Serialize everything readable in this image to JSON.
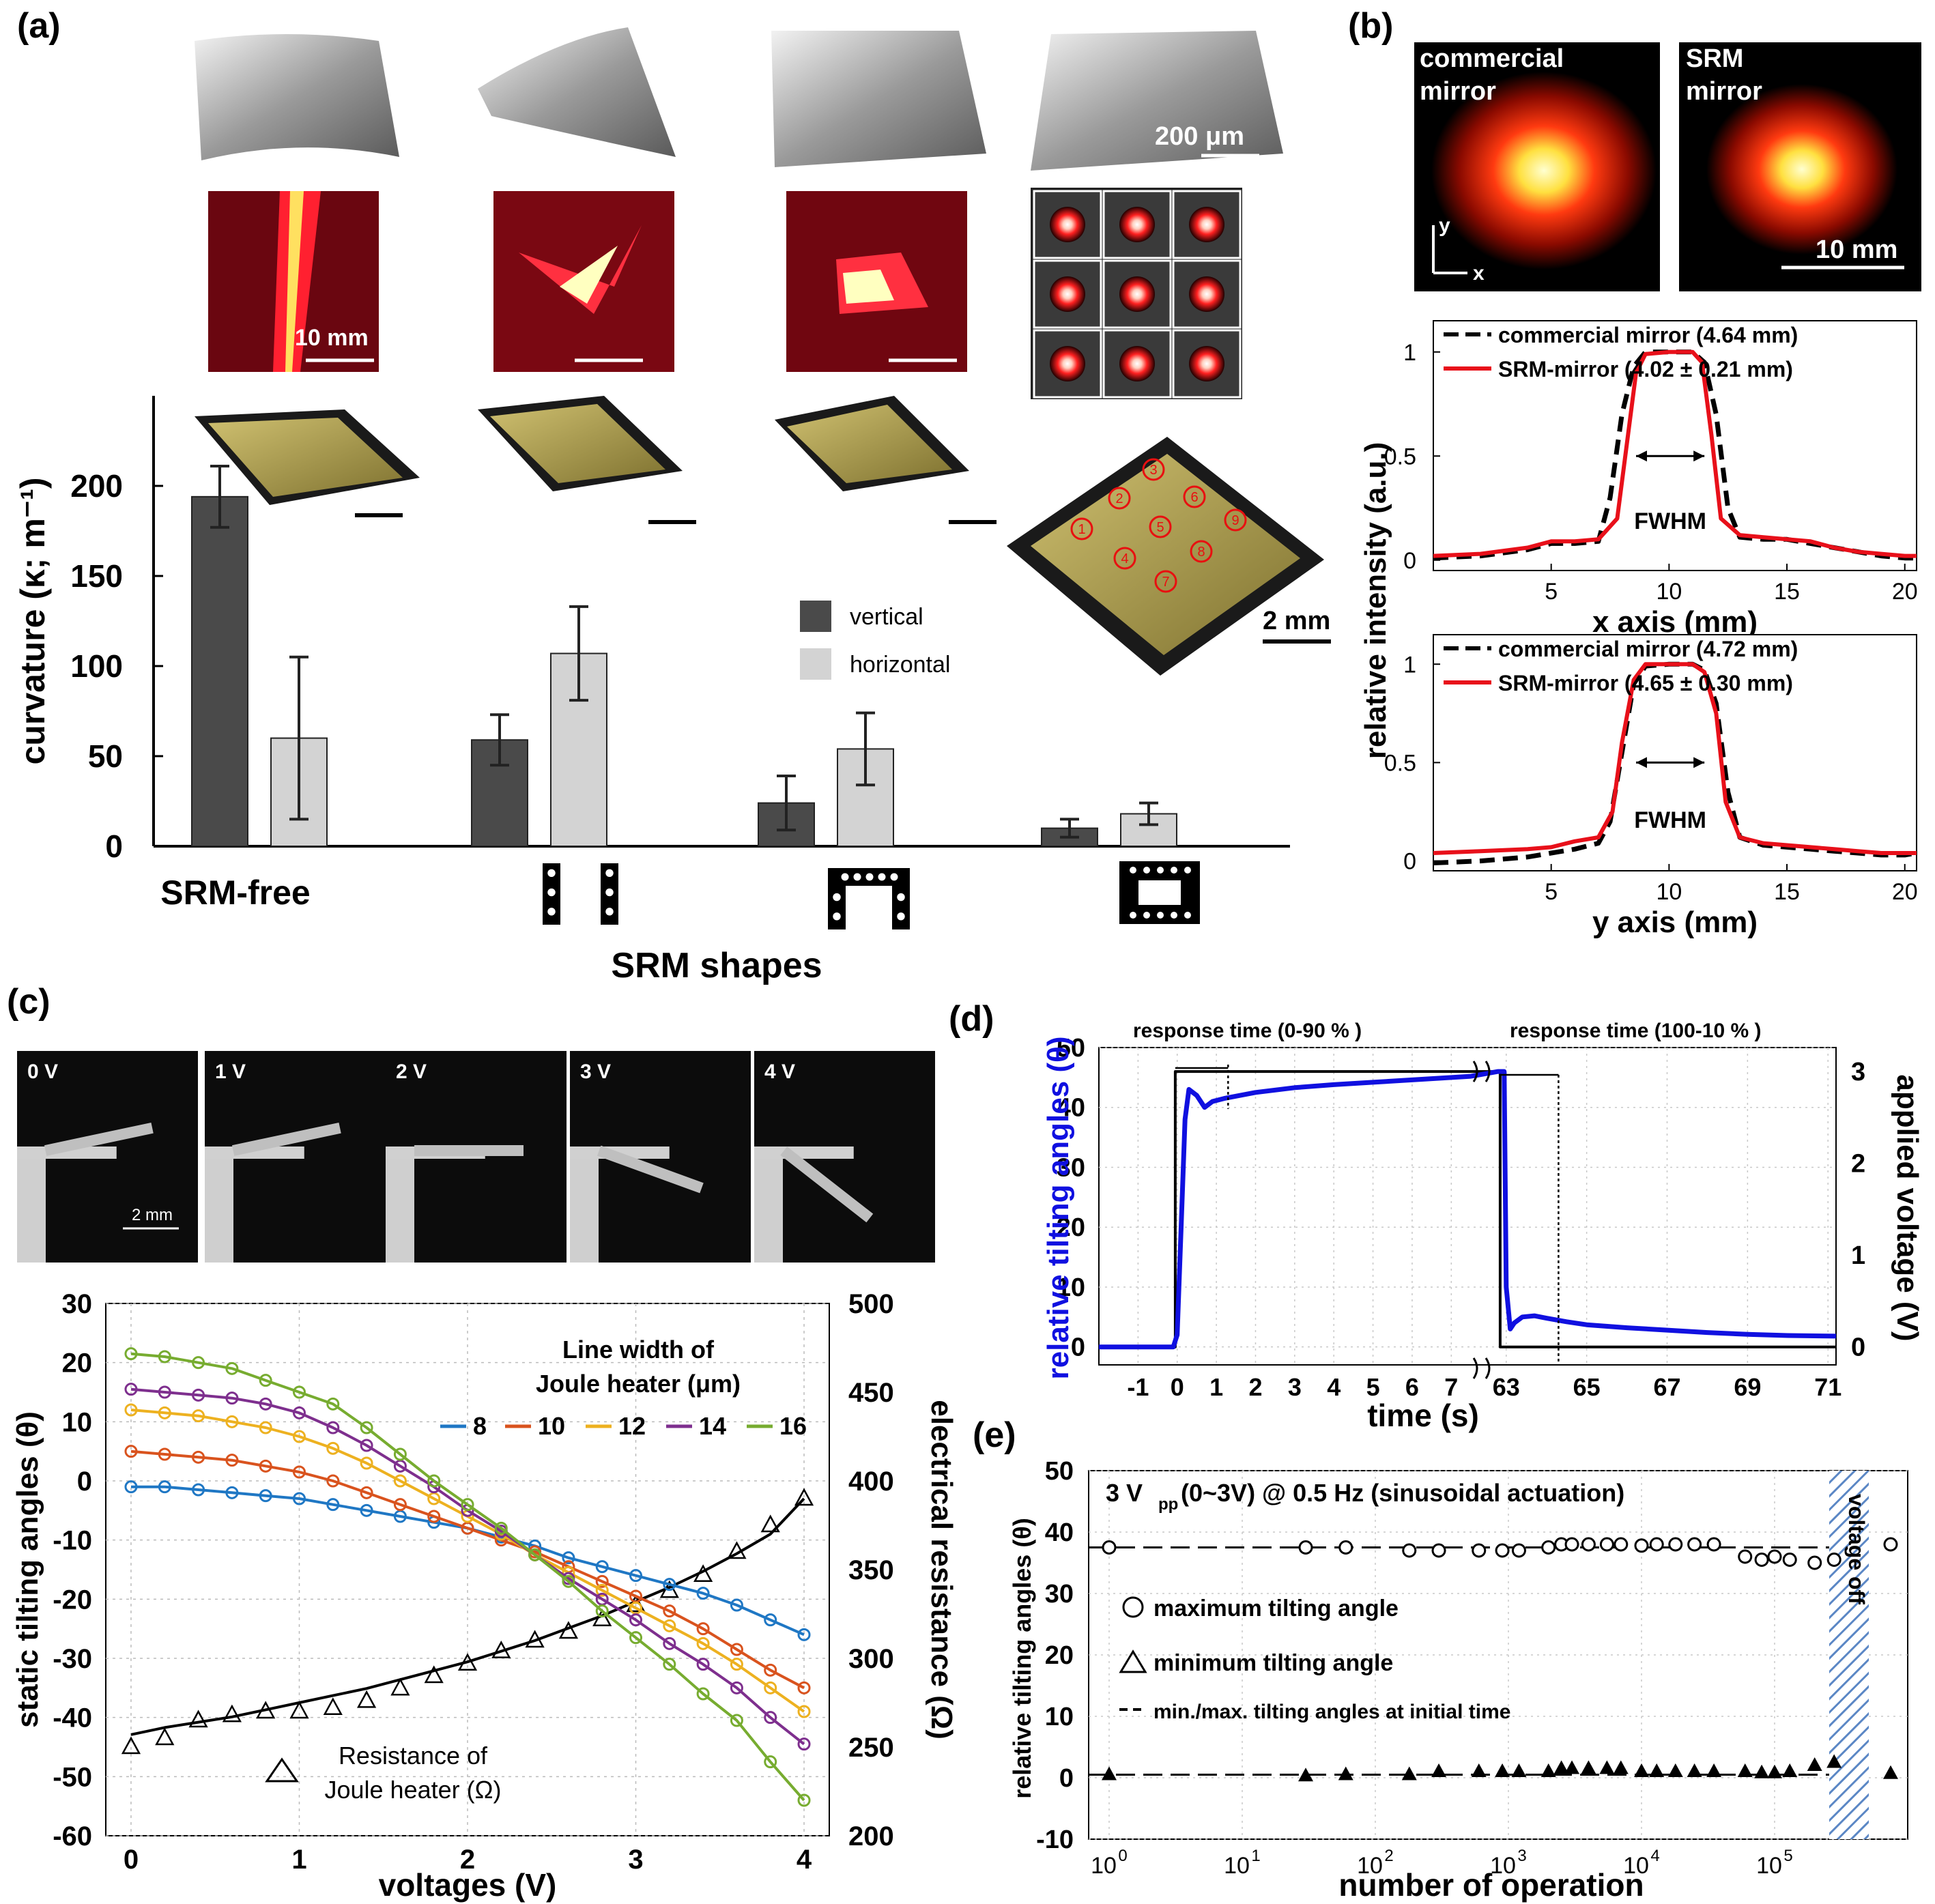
{
  "panel_labels": {
    "a": "(a)",
    "b": "(b)",
    "c": "(c)",
    "d": "(d)",
    "e": "(e)"
  },
  "panel_a": {
    "scale_200um": "200 μm",
    "scale_10mm": "10 mm",
    "scale_2mm": "2 mm",
    "spot_numbers": [
      "1",
      "2",
      "3",
      "4",
      "5",
      "6",
      "7",
      "8",
      "9"
    ]
  },
  "panel_b": {
    "photo_left_lines": [
      "commercial",
      "mirror"
    ],
    "photo_right_lines": [
      "SRM",
      "mirror"
    ],
    "axis_x": "x",
    "axis_y": "y",
    "scale": "10 mm",
    "shared_ylabel": "relative intensity (a.u.)",
    "fwhm": "FWHM"
  },
  "panel_c": {
    "photo_labels": [
      "0 V",
      "1 V",
      "2 V",
      "3 V",
      "4 V"
    ],
    "photo_scale": "2 mm",
    "legend_title_lines": [
      "Line width of",
      "Joule heater (μm)"
    ],
    "resistance_legend_lines": [
      "Resistance of",
      "Joule heater (Ω)"
    ]
  },
  "panel_d": {
    "annotation_left": "response time (0-90 % )",
    "annotation_right": "response time (100-10 % )"
  },
  "panel_e": {
    "title": "3 V",
    "title_sub": "pp",
    "title_rest": " (0~3V) @ 0.5 Hz (sinusoidal actuation)",
    "legend_max": "maximum tilting angle",
    "legend_min": "minimum tilting angle",
    "legend_init": "min./max. tilting angles at initial time",
    "voltage_off": "voltage off"
  },
  "chart_data": [
    {
      "id": "a",
      "type": "bar",
      "categories": [
        "SRM-free",
        "",
        "",
        ""
      ],
      "xlabel": "SRM shapes",
      "ylabel": "curvature (κ; m⁻¹)",
      "ylim": [
        0,
        250
      ],
      "yticks": [
        0,
        50,
        100,
        150,
        200
      ],
      "series": [
        {
          "name": "vertical",
          "color": "#4a4a4a",
          "values": [
            194,
            59,
            24,
            10
          ],
          "errors": [
            17,
            14,
            15,
            5
          ]
        },
        {
          "name": "horizontal",
          "color": "#d3d3d3",
          "values": [
            60,
            107,
            54,
            18
          ],
          "errors": [
            45,
            26,
            20,
            6
          ]
        }
      ]
    },
    {
      "id": "b1",
      "type": "line",
      "xlabel": "x axis (mm)",
      "xlim": [
        0,
        20.5
      ],
      "ylim": [
        -0.05,
        1.15
      ],
      "xticks": [
        5,
        10,
        15,
        20
      ],
      "yticks": [
        0,
        0.5,
        1
      ],
      "series": [
        {
          "name": "commercial mirror (4.64 mm)",
          "color": "#000000",
          "dash": true,
          "x": [
            0,
            2,
            4,
            5,
            6,
            7,
            7.5,
            8,
            8.5,
            9,
            10,
            11,
            11.5,
            12,
            12.5,
            13,
            14,
            15,
            16,
            17,
            18,
            19,
            20,
            20.5
          ],
          "y": [
            0.01,
            0.02,
            0.05,
            0.08,
            0.08,
            0.09,
            0.3,
            0.7,
            0.93,
            1,
            1,
            1,
            0.95,
            0.7,
            0.25,
            0.11,
            0.1,
            0.1,
            0.08,
            0.06,
            0.04,
            0.02,
            0.01,
            0.01
          ]
        },
        {
          "name": "SRM-mirror (4.02 ± 0.21 mm)",
          "color": "#e8101a",
          "dash": false,
          "x": [
            0,
            2,
            4,
            5,
            6,
            7,
            7.8,
            8.2,
            8.6,
            9,
            10,
            11,
            11.4,
            11.8,
            12.2,
            13,
            14,
            15,
            16,
            17,
            18,
            19,
            20,
            20.5
          ],
          "y": [
            0.02,
            0.03,
            0.06,
            0.09,
            0.09,
            0.1,
            0.2,
            0.55,
            0.9,
            0.99,
            1,
            1,
            0.95,
            0.6,
            0.2,
            0.12,
            0.11,
            0.1,
            0.09,
            0.06,
            0.04,
            0.03,
            0.02,
            0.02
          ]
        }
      ]
    },
    {
      "id": "b2",
      "type": "line",
      "xlabel": "y axis (mm)",
      "xlim": [
        0,
        20.5
      ],
      "ylim": [
        -0.05,
        1.15
      ],
      "xticks": [
        5,
        10,
        15,
        20
      ],
      "yticks": [
        0,
        0.5,
        1
      ],
      "series": [
        {
          "name": "commercial mirror (4.72 mm)",
          "color": "#000000",
          "dash": true,
          "x": [
            0,
            2,
            4,
            5,
            6,
            7,
            7.5,
            8,
            8.5,
            9,
            10,
            11,
            11.5,
            12,
            12.5,
            13,
            14,
            15,
            16,
            17,
            18,
            19,
            20,
            20.5
          ],
          "y": [
            -0.01,
            0,
            0.02,
            0.04,
            0.06,
            0.09,
            0.2,
            0.55,
            0.9,
            0.99,
            1,
            1,
            0.97,
            0.8,
            0.35,
            0.12,
            0.08,
            0.07,
            0.06,
            0.05,
            0.04,
            0.03,
            0.03,
            0.04
          ]
        },
        {
          "name": "SRM-mirror (4.65 ± 0.30 mm)",
          "color": "#e8101a",
          "dash": false,
          "x": [
            0,
            2,
            4,
            5,
            6,
            7,
            7.6,
            8,
            8.5,
            9,
            10,
            11,
            11.5,
            12,
            12.4,
            13,
            14,
            15,
            16,
            17,
            18,
            19,
            20,
            20.5
          ],
          "y": [
            0.04,
            0.05,
            0.06,
            0.07,
            0.1,
            0.12,
            0.25,
            0.6,
            0.92,
            1,
            1,
            1,
            0.96,
            0.75,
            0.3,
            0.12,
            0.09,
            0.08,
            0.07,
            0.06,
            0.05,
            0.04,
            0.04,
            0.04
          ]
        }
      ]
    },
    {
      "id": "c",
      "type": "line",
      "xlabel": "voltages (V)",
      "ylabel": "static tilting angles (θ)",
      "ylabel_right": "electrical resistance (Ω)",
      "xlim": [
        -0.15,
        4.15
      ],
      "ylim": [
        -60,
        30
      ],
      "ylim_right": [
        200,
        500
      ],
      "xticks": [
        0,
        1,
        2,
        3,
        4
      ],
      "yticks": [
        -60,
        -50,
        -40,
        -30,
        -20,
        -10,
        0,
        10,
        20,
        30
      ],
      "yticks_right": [
        200,
        250,
        300,
        350,
        400,
        450,
        500
      ],
      "x": [
        0,
        0.2,
        0.4,
        0.6,
        0.8,
        1.0,
        1.2,
        1.4,
        1.6,
        1.8,
        2.0,
        2.2,
        2.4,
        2.6,
        2.8,
        3.0,
        3.2,
        3.4,
        3.6,
        3.8,
        4.0
      ],
      "series": [
        {
          "name": "8",
          "color": "#1f77c4",
          "values": [
            -1,
            -1,
            -1.5,
            -2,
            -2.5,
            -3,
            -4,
            -5,
            -6,
            -7,
            -8,
            -9.5,
            -11,
            -13,
            -14.5,
            -16,
            -17.5,
            -19,
            -21,
            -23.5,
            -26
          ]
        },
        {
          "name": "10",
          "color": "#d9531e",
          "values": [
            5,
            4.5,
            4,
            3.5,
            2.5,
            1.5,
            0,
            -2,
            -4,
            -6,
            -8,
            -10,
            -12,
            -14.5,
            -17,
            -19.5,
            -22,
            -25,
            -28.5,
            -32,
            -35
          ]
        },
        {
          "name": "12",
          "color": "#edb120",
          "values": [
            12,
            11.5,
            11,
            10,
            9,
            7.5,
            5.5,
            3,
            0,
            -3,
            -6,
            -9,
            -12.5,
            -15.5,
            -18.5,
            -21.5,
            -24.5,
            -27.5,
            -31,
            -35,
            -39
          ]
        },
        {
          "name": "14",
          "color": "#7e2f8e",
          "values": [
            15.5,
            15,
            14.5,
            14,
            13,
            11.5,
            9,
            6,
            2.5,
            -1,
            -5,
            -8.5,
            -12.5,
            -16.5,
            -20,
            -23.5,
            -27.5,
            -31,
            -35,
            -40,
            -44.5
          ]
        },
        {
          "name": "16",
          "color": "#77ac30",
          "values": [
            21.5,
            21,
            20,
            19,
            17,
            15,
            13,
            9,
            4.5,
            0,
            -4,
            -8,
            -12.5,
            -17,
            -22,
            -26.5,
            -31,
            -36,
            -40.5,
            -47.5,
            -54
          ]
        }
      ],
      "resistance": {
        "name": "Resistance of Joule heater (Ω)",
        "marker_values": [
          250,
          255,
          265,
          268,
          270,
          270,
          272,
          276,
          283,
          290,
          297,
          304,
          310,
          315,
          322,
          330,
          338,
          347,
          360,
          375,
          390
        ],
        "fit_values": [
          257,
          261,
          264,
          267,
          271,
          275,
          279,
          283,
          288,
          293,
          298,
          304,
          310,
          317,
          324,
          332,
          340,
          349,
          359,
          370,
          390
        ]
      }
    },
    {
      "id": "d",
      "type": "line",
      "xlabel": "time (s)",
      "ylabel": "relative tilting angles (θ)",
      "ylabel_right": "applied voltage (V)",
      "ylim": [
        -3,
        50
      ],
      "yticks": [
        0,
        10,
        20,
        30,
        40,
        50
      ],
      "yticks_right": [
        0,
        1,
        2,
        3
      ],
      "xticks_left": [
        -1,
        0,
        1,
        2,
        3,
        4,
        5,
        6,
        7
      ],
      "xticks_right": [
        63,
        65,
        67,
        69,
        71
      ],
      "segments": {
        "left": [
          -2,
          7.5
        ],
        "right": [
          62.8,
          71.2
        ]
      },
      "angle": {
        "name": "relative tilting angles",
        "color": "#1010e0",
        "x": [
          -2,
          -0.1,
          0,
          0.1,
          0.2,
          0.3,
          0.5,
          0.7,
          0.9,
          1.2,
          1.6,
          2,
          3,
          4,
          5,
          6,
          7,
          7.5,
          62.8,
          62.95,
          63,
          63.1,
          63.2,
          63.4,
          63.7,
          64,
          64.5,
          65,
          66,
          67,
          68,
          69,
          70,
          71.2
        ],
        "y": [
          0,
          0,
          2,
          20,
          38,
          43,
          42,
          40,
          41,
          41.5,
          42,
          42.5,
          43.3,
          43.8,
          44.2,
          44.6,
          45,
          45.2,
          46,
          46,
          10,
          3,
          4,
          5,
          5.2,
          4.8,
          4.2,
          3.7,
          3.2,
          2.8,
          2.4,
          2.1,
          1.9,
          1.8
        ]
      },
      "voltage": {
        "name": "applied voltage",
        "color": "#000000",
        "x": [
          -2,
          -0.05,
          -0.05,
          7.5,
          62.8,
          62.85,
          62.85,
          71.2
        ],
        "y": [
          0,
          0,
          3,
          3,
          3,
          3,
          0,
          0
        ]
      }
    },
    {
      "id": "e",
      "type": "scatter",
      "xlabel": "number of operation",
      "ylabel": "relative tilting angles (θ)",
      "xscale": "log",
      "ylim": [
        -10,
        50
      ],
      "yticks": [
        -10,
        0,
        10,
        20,
        30,
        40,
        50
      ],
      "xticks": [
        "10^0",
        "10^1",
        "10^2",
        "10^3",
        "10^4",
        "10^5"
      ],
      "max_initial": 37.5,
      "min_initial": 0.5,
      "maximum": {
        "name": "maximum tilting angle",
        "x": [
          1,
          30,
          60,
          180,
          300,
          600,
          900,
          1200,
          2000,
          2500,
          3000,
          4000,
          5500,
          7000,
          10000,
          13000,
          18000,
          25000,
          35000,
          60000,
          80000,
          100000,
          130000,
          200000,
          280000
        ],
        "y": [
          37.5,
          37.5,
          37.5,
          37,
          37,
          37,
          37,
          37,
          37.5,
          38,
          38,
          38,
          38,
          38,
          37.8,
          38,
          38,
          38,
          38,
          36,
          35.5,
          36,
          35.5,
          35,
          35.5
        ]
      },
      "minimum": {
        "name": "minimum tilting angle",
        "x": [
          1,
          30,
          60,
          180,
          300,
          600,
          900,
          1200,
          2000,
          2500,
          3000,
          4000,
          5500,
          7000,
          10000,
          13000,
          18000,
          25000,
          35000,
          60000,
          80000,
          100000,
          130000,
          200000,
          280000
        ],
        "y": [
          0.5,
          0.3,
          0.5,
          0.5,
          1,
          1,
          1,
          1,
          1,
          1.5,
          1.5,
          1.5,
          1.5,
          1.5,
          1,
          1,
          1,
          1,
          1,
          1,
          0.8,
          0.8,
          1,
          2,
          2.5
        ]
      },
      "after_off": {
        "max": 38,
        "min": 0.7
      }
    }
  ]
}
